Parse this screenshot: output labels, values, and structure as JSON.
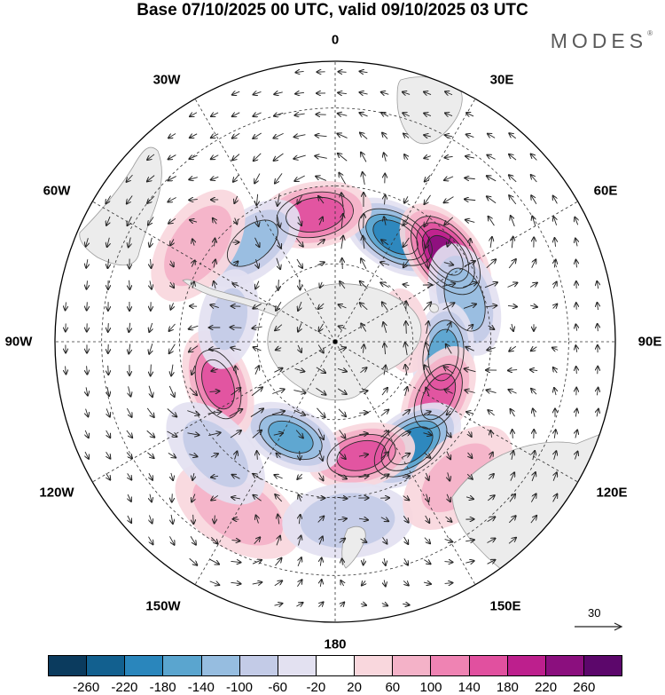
{
  "title": "Base 07/10/2025 00 UTC, valid 09/10/2025 03 UTC",
  "logo": "MODES",
  "logo_mark": "®",
  "longitude_labels": {
    "lon_0": "0",
    "lon_30e": "30E",
    "lon_60e": "60E",
    "lon_90e": "90E",
    "lon_120e": "120E",
    "lon_150e": "150E",
    "lon_180": "180",
    "lon_150w": "150W",
    "lon_120w": "120W",
    "lon_90w": "90W",
    "lon_60w": "60W",
    "lon_30w": "30W"
  },
  "vector_scale": {
    "label": "30"
  },
  "colorbar": {
    "ticks": [
      "-260",
      "-220",
      "-180",
      "-140",
      "-100",
      "-60",
      "-20",
      "20",
      "60",
      "100",
      "140",
      "180",
      "220",
      "260"
    ],
    "colors": [
      "#0b3b5e",
      "#12608f",
      "#2a86bc",
      "#5aa5cf",
      "#96bde0",
      "#c3cbe7",
      "#e3e1f1",
      "#ffffff",
      "#f9d7dd",
      "#f4b2c8",
      "#ef83b3",
      "#e1509f",
      "#bd1f8d",
      "#8b0f7e",
      "#5c076b"
    ]
  },
  "anomaly_centers": [
    {
      "lon": 30,
      "colat": 31,
      "value": -200
    },
    {
      "lon": -9,
      "colat": 33,
      "value": 170
    },
    {
      "lon": -40,
      "colat": 33,
      "value": -110
    },
    {
      "lon": -55,
      "colat": 43,
      "value": 90
    },
    {
      "lon": 52,
      "colat": 36,
      "value": 230
    },
    {
      "lon": 72,
      "colat": 35,
      "value": -120
    },
    {
      "lon": 97,
      "colat": 28,
      "value": -160
    },
    {
      "lon": 81,
      "colat": 18,
      "value": 50
    },
    {
      "lon": 118,
      "colat": 30,
      "value": 150
    },
    {
      "lon": 144,
      "colat": 33,
      "value": -200
    },
    {
      "lon": 167,
      "colat": 30,
      "value": 150
    },
    {
      "lon": -155,
      "colat": 27,
      "value": -150
    },
    {
      "lon": -110,
      "colat": 32,
      "value": 150
    },
    {
      "lon": -78,
      "colat": 28,
      "value": -60
    },
    {
      "lon": -150,
      "colat": 50,
      "value": 90
    },
    {
      "lon": -133,
      "colat": 42,
      "value": -70
    },
    {
      "lon": 176,
      "colat": 46,
      "value": -90
    },
    {
      "lon": 138,
      "colat": 47,
      "value": 70
    }
  ]
}
